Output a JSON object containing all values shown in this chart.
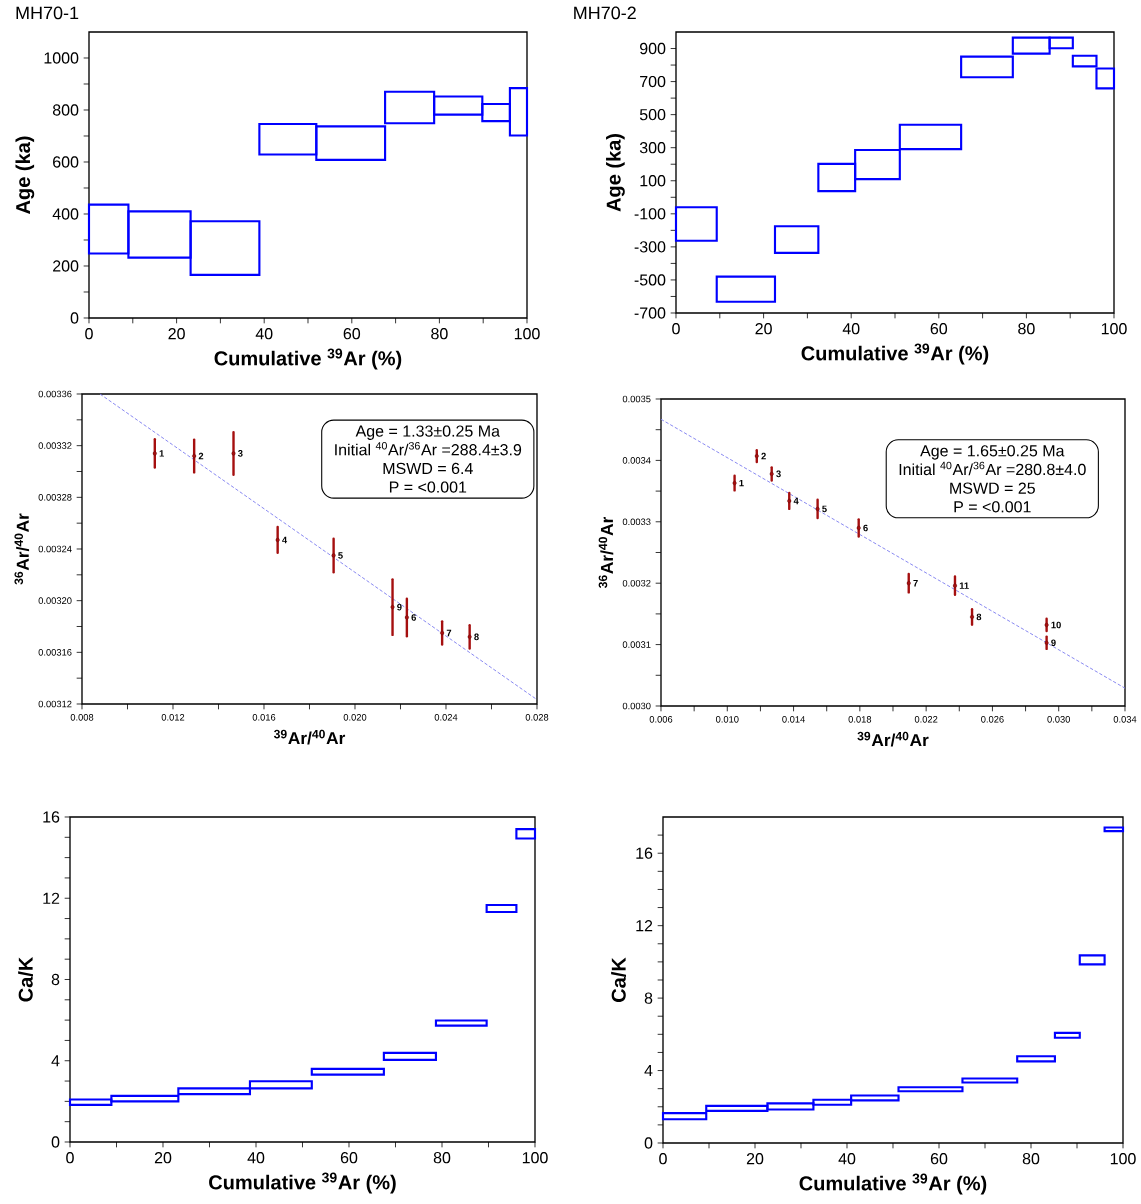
{
  "chart_data": [
    {
      "type": "histogram",
      "title": "MH70-1",
      "xlabel": "Cumulative $^{39}$Ar (%)",
      "ylabel": "Age (ka)",
      "color": "#0000ff",
      "bins": [
        0,
        9.0,
        23.2,
        38.9,
        51.9,
        67.6,
        78.8,
        89.8,
        96.1,
        100
      ],
      "base": [
        248,
        232,
        166,
        629,
        608,
        749,
        782,
        757,
        702
      ],
      "values": [
        188,
        178,
        206,
        117,
        129,
        121,
        70,
        66,
        182
      ],
      "xlim": [
        0,
        100
      ],
      "xticks": [
        0,
        {
          "value": 10,
          "label": null
        },
        20,
        {
          "value": 30,
          "label": null
        },
        40,
        {
          "value": 50,
          "label": null
        },
        60,
        {
          "value": 70,
          "label": null
        },
        80,
        {
          "value": 90,
          "label": null
        },
        100
      ],
      "ylim": [
        0,
        1100
      ],
      "yticks": [
        0,
        {
          "value": 100,
          "label": null
        },
        200,
        {
          "value": 300,
          "label": null
        },
        400,
        {
          "value": 500,
          "label": null
        },
        600,
        {
          "value": 700,
          "label": null
        },
        800,
        {
          "value": 900,
          "label": null
        },
        1000
      ]
    },
    {
      "type": "histogram",
      "title": "MH70-2",
      "xlabel": "Cumulative $^{39}$Ar (%)",
      "ylabel": "Age (ka)",
      "color": "#0000ff",
      "bins": [
        0,
        9.3,
        22.6,
        32.5,
        40.9,
        51.1,
        65.1,
        76.9,
        85.3,
        90.6,
        96.0,
        100
      ],
      "base": [
        -263,
        -632,
        -336,
        37,
        110,
        291,
        726,
        869,
        902,
        792,
        659
      ],
      "values": [
        203,
        152,
        161,
        165,
        176,
        148,
        125,
        97,
        64,
        64,
        120
      ],
      "xlim": [
        0,
        100
      ],
      "xticks": [
        0,
        {
          "value": 10,
          "label": null
        },
        20,
        {
          "value": 30,
          "label": null
        },
        40,
        {
          "value": 50,
          "label": null
        },
        60,
        {
          "value": 70,
          "label": null
        },
        80,
        {
          "value": 90,
          "label": null
        },
        100
      ],
      "ylim": [
        -700,
        1000
      ],
      "yticks": [
        -700,
        {
          "value": -600,
          "label": null
        },
        -500,
        {
          "value": -400,
          "label": null
        },
        -300,
        {
          "value": -200,
          "label": null
        },
        -100,
        {
          "value": 0,
          "label": null
        },
        100,
        {
          "value": 200,
          "label": null
        },
        300,
        {
          "value": 400,
          "label": null
        },
        500,
        {
          "value": 600,
          "label": null
        },
        700,
        {
          "value": 800,
          "label": null
        },
        900
      ]
    },
    {
      "type": "scatter",
      "xlabel": "$^{39}$Ar/$^{40}$Ar",
      "ylabel": "$^{36}$Ar/$^{40}$Ar",
      "series": [
        {
          "type": "line",
          "color": "#8080f0",
          "line_style": "dashed",
          "x": [
            0.00879,
            0.02795
          ],
          "values": [
            0.00336,
            0.003124
          ]
        },
        {
          "type": "scatter",
          "color": "#a50f0f",
          "x": [
            0.0112,
            0.01293,
            0.01466,
            0.0166,
            0.01906,
            0.02228,
            0.02383,
            0.02504,
            0.02165
          ],
          "values": [
            0.003314,
            0.003312,
            0.003314,
            0.003247,
            0.003235,
            0.003187,
            0.003175,
            0.003172,
            0.003195
          ],
          "errors": [
            1.1e-05,
            1.27e-05,
            1.65e-05,
            1e-05,
            1.3e-05,
            1.45e-05,
            9e-06,
            9e-06,
            2.15e-05
          ]
        }
      ],
      "annotations": [
        "Age = 1.33±0.25 Ma",
        "Initial $^{40}$Ar/$^{36}$Ar =288.4±3.9",
        "MSWD = 6.4",
        "P = <0.001",
        {
          "text": "1",
          "x": 0.0112,
          "y": 0.003314
        },
        {
          "text": "2",
          "x": 0.01293,
          "y": 0.003312
        },
        {
          "text": "3",
          "x": 0.01466,
          "y": 0.003314
        },
        {
          "text": "4",
          "x": 0.0166,
          "y": 0.003247
        },
        {
          "text": "5",
          "x": 0.01906,
          "y": 0.003235
        },
        {
          "text": "6",
          "x": 0.02228,
          "y": 0.003187
        },
        {
          "text": "7",
          "x": 0.02383,
          "y": 0.003175
        },
        {
          "text": "8",
          "x": 0.02504,
          "y": 0.003172
        },
        {
          "text": "9",
          "x": 0.02165,
          "y": 0.003195
        }
      ],
      "xlim": [
        0.008,
        0.028
      ],
      "xticks": [
        0.008,
        {
          "value": 0.01,
          "label": null
        },
        0.012,
        {
          "value": 0.014,
          "label": null
        },
        0.016,
        {
          "value": 0.018,
          "label": null
        },
        {
          "value": 0.02,
          "label": "0.020"
        },
        {
          "value": 0.022,
          "label": null
        },
        0.024,
        {
          "value": 0.026,
          "label": null
        },
        0.028
      ],
      "ylim": [
        0.00312,
        0.00336
      ],
      "yticks": [
        0.00312,
        {
          "value": 0.00314,
          "label": null
        },
        0.00316,
        {
          "value": 0.00318,
          "label": null
        },
        {
          "value": 0.0032,
          "label": "0.00320"
        },
        {
          "value": 0.00322,
          "label": null
        },
        0.00324,
        {
          "value": 0.00326,
          "label": null
        },
        0.00328,
        {
          "value": 0.0033,
          "label": null
        },
        0.00332,
        {
          "value": 0.00334,
          "label": null
        },
        0.00336
      ]
    },
    {
      "type": "scatter",
      "xlabel": "$^{39}$Ar/$^{40}$Ar",
      "ylabel": "$^{36}$Ar/$^{40}$Ar",
      "series": [
        {
          "type": "line",
          "color": "#8080f0",
          "line_style": "dashed",
          "x": [
            0.006,
            0.034
          ],
          "values": [
            0.003467,
            0.003029
          ]
        },
        {
          "type": "scatter",
          "color": "#a50f0f",
          "x": [
            0.01044,
            0.01178,
            0.01268,
            0.01374,
            0.01545,
            0.01793,
            0.02095,
            0.02477,
            0.02927,
            0.02927,
            0.02374
          ],
          "values": [
            0.003363,
            0.003407,
            0.003378,
            0.003334,
            0.003321,
            0.00329,
            0.0032,
            0.003145,
            0.003103,
            0.003132,
            0.003196
          ],
          "errors": [
            1.19e-05,
            9.5e-06,
            1.07e-05,
            1.3e-05,
            1.5e-05,
            1.4e-05,
            1.5e-05,
            1.25e-05,
            1e-05,
            1e-05,
            1.5e-05
          ]
        }
      ],
      "annotations": [
        "Age = 1.65±0.25 Ma",
        "Initial $^{40}$Ar/$^{36}$Ar =280.8±4.0",
        "MSWD = 25",
        "P = <0.001",
        {
          "text": "1",
          "x": 0.01044,
          "y": 0.003363
        },
        {
          "text": "2",
          "x": 0.01178,
          "y": 0.003407
        },
        {
          "text": "3",
          "x": 0.01268,
          "y": 0.003378
        },
        {
          "text": "4",
          "x": 0.01374,
          "y": 0.003334
        },
        {
          "text": "5",
          "x": 0.01545,
          "y": 0.003321
        },
        {
          "text": "6",
          "x": 0.01793,
          "y": 0.00329
        },
        {
          "text": "7",
          "x": 0.02095,
          "y": 0.0032
        },
        {
          "text": "8",
          "x": 0.02477,
          "y": 0.003145
        },
        {
          "text": "9",
          "x": 0.02927,
          "y": 0.003103
        },
        {
          "text": "10",
          "x": 0.02927,
          "y": 0.003132
        },
        {
          "text": "11",
          "x": 0.02374,
          "y": 0.003196
        }
      ],
      "xlim": [
        0.006,
        0.034
      ],
      "xticks": [
        0.006,
        {
          "value": 0.008,
          "label": null
        },
        {
          "value": 0.01,
          "label": "0.010"
        },
        {
          "value": 0.012,
          "label": null
        },
        0.014,
        {
          "value": 0.016,
          "label": null
        },
        0.018,
        {
          "value": 0.02,
          "label": null
        },
        0.022,
        {
          "value": 0.024,
          "label": null
        },
        0.026,
        {
          "value": 0.028,
          "label": null
        },
        {
          "value": 0.03,
          "label": "0.030"
        },
        {
          "value": 0.032,
          "label": null
        },
        0.034
      ],
      "ylim": [
        0.003,
        0.0035
      ],
      "yticks": [
        {
          "value": 0.003,
          "label": "0.0030"
        },
        {
          "value": 0.00305,
          "label": null
        },
        0.0031,
        {
          "value": 0.00315,
          "label": null
        },
        0.0032,
        {
          "value": 0.00325,
          "label": null
        },
        0.0033,
        {
          "value": 0.00335,
          "label": null
        },
        0.0034,
        {
          "value": 0.00345,
          "label": null
        },
        0.0035
      ]
    },
    {
      "type": "histogram",
      "xlabel": "Cumulative $^{39}$Ar (%)",
      "ylabel": "Ca/K",
      "color": "#0000ff",
      "bins": [
        0,
        8.9,
        23.3,
        38.7,
        52.0,
        67.5,
        78.7,
        89.6,
        96.0,
        100
      ],
      "base": [
        1.83,
        2.0,
        2.36,
        2.64,
        3.32,
        4.04,
        5.73,
        11.32,
        14.94
      ],
      "values": [
        0.26,
        0.27,
        0.28,
        0.35,
        0.28,
        0.35,
        0.25,
        0.35,
        0.46
      ],
      "xlim": [
        0,
        100
      ],
      "xticks": [
        0,
        {
          "value": 10,
          "label": null
        },
        20,
        {
          "value": 30,
          "label": null
        },
        40,
        {
          "value": 50,
          "label": null
        },
        60,
        {
          "value": 70,
          "label": null
        },
        80,
        {
          "value": 90,
          "label": null
        },
        100
      ],
      "ylim": [
        0,
        16
      ],
      "yticks": [
        0,
        {
          "value": 1,
          "label": null
        },
        {
          "value": 2,
          "label": null
        },
        {
          "value": 3,
          "label": null
        },
        4,
        {
          "value": 5,
          "label": null
        },
        {
          "value": 6,
          "label": null
        },
        {
          "value": 7,
          "label": null
        },
        8,
        {
          "value": 9,
          "label": null
        },
        {
          "value": 10,
          "label": null
        },
        {
          "value": 11,
          "label": null
        },
        12,
        {
          "value": 13,
          "label": null
        },
        {
          "value": 14,
          "label": null
        },
        {
          "value": 15,
          "label": null
        },
        16
      ]
    },
    {
      "type": "histogram",
      "xlabel": "Cumulative $^{39}$Ar (%)",
      "ylabel": "Ca/K",
      "color": "#0000ff",
      "bins": [
        0,
        9.4,
        22.7,
        32.7,
        40.9,
        51.2,
        65.1,
        77.0,
        85.2,
        90.6,
        96.0,
        100
      ],
      "base": [
        1.31,
        1.77,
        1.85,
        2.11,
        2.35,
        2.86,
        3.34,
        4.51,
        5.81,
        9.86,
        17.22
      ],
      "values": [
        0.34,
        0.28,
        0.34,
        0.28,
        0.27,
        0.22,
        0.22,
        0.28,
        0.27,
        0.5,
        0.2
      ],
      "xlim": [
        0,
        100
      ],
      "xticks": [
        0,
        {
          "value": 10,
          "label": null
        },
        20,
        {
          "value": 30,
          "label": null
        },
        40,
        {
          "value": 50,
          "label": null
        },
        60,
        {
          "value": 70,
          "label": null
        },
        80,
        {
          "value": 90,
          "label": null
        },
        100
      ],
      "ylim": [
        0,
        18
      ],
      "yticks": [
        0,
        {
          "value": 1,
          "label": null
        },
        {
          "value": 2,
          "label": null
        },
        {
          "value": 3,
          "label": null
        },
        4,
        {
          "value": 5,
          "label": null
        },
        {
          "value": 6,
          "label": null
        },
        {
          "value": 7,
          "label": null
        },
        8,
        {
          "value": 9,
          "label": null
        },
        {
          "value": 10,
          "label": null
        },
        {
          "value": 11,
          "label": null
        },
        12,
        {
          "value": 13,
          "label": null
        },
        {
          "value": 14,
          "label": null
        },
        {
          "value": 15,
          "label": null
        },
        16,
        {
          "value": 17,
          "label": null
        }
      ]
    }
  ]
}
